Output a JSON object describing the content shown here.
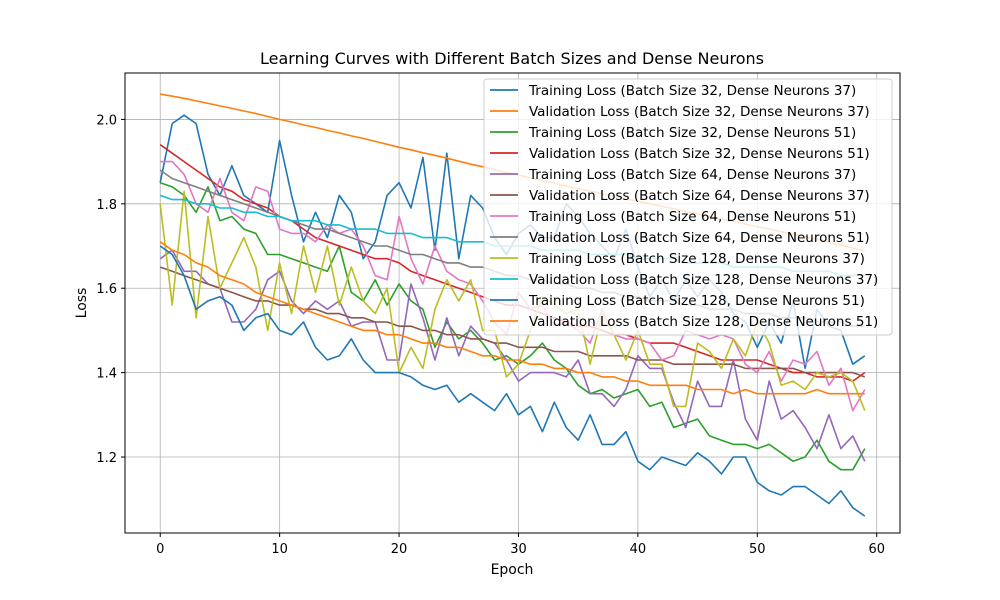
{
  "chart_data": {
    "type": "line",
    "title": "Learning Curves with Different Batch Sizes and Dense Neurons",
    "xlabel": "Epoch",
    "ylabel": "Loss",
    "xlim": [
      -2.95,
      61.95
    ],
    "ylim": [
      1.02,
      2.11
    ],
    "xticks": [
      0,
      10,
      20,
      30,
      40,
      50,
      60
    ],
    "yticks": [
      1.2,
      1.4,
      1.6,
      1.8,
      2.0
    ],
    "xtick_labels": [
      "0",
      "10",
      "20",
      "30",
      "40",
      "50",
      "60"
    ],
    "ytick_labels": [
      "1.2",
      "1.4",
      "1.6",
      "1.8",
      "2.0"
    ],
    "grid": true,
    "legend_position": "top-right",
    "series": [
      {
        "name": "Training Loss (Batch Size 32, Dense Neurons 37)",
        "color": "#1f77b4",
        "values": [
          1.85,
          1.99,
          2.01,
          1.99,
          1.87,
          1.82,
          1.89,
          1.82,
          1.8,
          1.78,
          1.95,
          1.82,
          1.71,
          1.78,
          1.72,
          1.82,
          1.78,
          1.67,
          1.71,
          1.82,
          1.85,
          1.79,
          1.91,
          1.69,
          1.92,
          1.67,
          1.82,
          1.79,
          1.72,
          1.68,
          1.73,
          1.75,
          1.72,
          1.72,
          1.8,
          1.77,
          1.73,
          1.7,
          1.67,
          1.74,
          1.65,
          1.58,
          1.62,
          1.57,
          1.62,
          1.58,
          1.62,
          1.59,
          1.54,
          1.52,
          1.46,
          1.52,
          1.47,
          1.57,
          1.41,
          1.55,
          1.51,
          1.5,
          1.42,
          1.44
        ]
      },
      {
        "name": "Validation Loss (Batch Size 32, Dense Neurons 37)",
        "color": "#ff7f0e",
        "values": [
          2.06,
          2.055,
          2.05,
          2.044,
          2.038,
          2.032,
          2.026,
          2.02,
          2.014,
          2.007,
          2.0,
          1.994,
          1.987,
          1.981,
          1.974,
          1.968,
          1.961,
          1.955,
          1.948,
          1.941,
          1.934,
          1.928,
          1.921,
          1.915,
          1.908,
          1.901,
          1.894,
          1.888,
          1.881,
          1.874,
          1.868,
          1.861,
          1.855,
          1.849,
          1.842,
          1.836,
          1.83,
          1.824,
          1.818,
          1.812,
          1.806,
          1.8,
          1.794,
          1.788,
          1.782,
          1.776,
          1.77,
          1.764,
          1.758,
          1.752,
          1.746,
          1.74,
          1.734,
          1.728,
          1.722,
          1.716,
          1.709,
          1.702,
          1.695,
          1.688
        ]
      },
      {
        "name": "Training Loss (Batch Size 32, Dense Neurons 51)",
        "color": "#2ca02c",
        "values": [
          1.85,
          1.84,
          1.82,
          1.78,
          1.84,
          1.76,
          1.77,
          1.74,
          1.73,
          1.68,
          1.68,
          1.67,
          1.66,
          1.65,
          1.64,
          1.7,
          1.59,
          1.57,
          1.62,
          1.56,
          1.61,
          1.57,
          1.55,
          1.46,
          1.52,
          1.48,
          1.5,
          1.47,
          1.43,
          1.44,
          1.42,
          1.44,
          1.47,
          1.43,
          1.41,
          1.37,
          1.35,
          1.36,
          1.34,
          1.35,
          1.36,
          1.32,
          1.33,
          1.27,
          1.28,
          1.29,
          1.25,
          1.24,
          1.23,
          1.23,
          1.22,
          1.23,
          1.21,
          1.19,
          1.2,
          1.24,
          1.19,
          1.17,
          1.17,
          1.22
        ]
      },
      {
        "name": "Validation Loss (Batch Size 32, Dense Neurons 51)",
        "color": "#d62728",
        "values": [
          1.94,
          1.92,
          1.9,
          1.88,
          1.86,
          1.84,
          1.83,
          1.81,
          1.8,
          1.79,
          1.77,
          1.76,
          1.74,
          1.72,
          1.71,
          1.7,
          1.69,
          1.68,
          1.67,
          1.67,
          1.66,
          1.64,
          1.63,
          1.62,
          1.61,
          1.6,
          1.59,
          1.58,
          1.57,
          1.56,
          1.56,
          1.55,
          1.54,
          1.53,
          1.52,
          1.51,
          1.51,
          1.5,
          1.49,
          1.49,
          1.48,
          1.47,
          1.47,
          1.47,
          1.46,
          1.45,
          1.44,
          1.43,
          1.43,
          1.43,
          1.43,
          1.42,
          1.41,
          1.4,
          1.4,
          1.39,
          1.39,
          1.39,
          1.38,
          1.4
        ]
      },
      {
        "name": "Training Loss (Batch Size 64, Dense Neurons 37)",
        "color": "#9467bd",
        "values": [
          1.67,
          1.69,
          1.64,
          1.64,
          1.61,
          1.6,
          1.52,
          1.52,
          1.55,
          1.62,
          1.64,
          1.57,
          1.54,
          1.57,
          1.55,
          1.57,
          1.51,
          1.52,
          1.52,
          1.43,
          1.43,
          1.61,
          1.53,
          1.43,
          1.53,
          1.44,
          1.51,
          1.48,
          1.47,
          1.43,
          1.38,
          1.4,
          1.4,
          1.4,
          1.39,
          1.43,
          1.35,
          1.35,
          1.32,
          1.36,
          1.44,
          1.41,
          1.41,
          1.33,
          1.27,
          1.38,
          1.32,
          1.32,
          1.43,
          1.29,
          1.24,
          1.38,
          1.29,
          1.31,
          1.27,
          1.22,
          1.3,
          1.22,
          1.25,
          1.19
        ]
      },
      {
        "name": "Validation Loss (Batch Size 64, Dense Neurons 37)",
        "color": "#8c564b",
        "values": [
          1.65,
          1.64,
          1.63,
          1.62,
          1.61,
          1.6,
          1.59,
          1.58,
          1.57,
          1.57,
          1.56,
          1.56,
          1.55,
          1.55,
          1.54,
          1.54,
          1.53,
          1.53,
          1.52,
          1.52,
          1.51,
          1.51,
          1.5,
          1.5,
          1.49,
          1.49,
          1.48,
          1.48,
          1.47,
          1.47,
          1.46,
          1.46,
          1.46,
          1.45,
          1.45,
          1.45,
          1.44,
          1.44,
          1.44,
          1.44,
          1.43,
          1.43,
          1.43,
          1.42,
          1.42,
          1.42,
          1.42,
          1.42,
          1.42,
          1.41,
          1.41,
          1.41,
          1.41,
          1.41,
          1.4,
          1.4,
          1.4,
          1.4,
          1.4,
          1.39
        ]
      },
      {
        "name": "Training Loss (Batch Size 64, Dense Neurons 51)",
        "color": "#e377c2",
        "values": [
          1.9,
          1.9,
          1.87,
          1.8,
          1.78,
          1.86,
          1.78,
          1.76,
          1.84,
          1.83,
          1.74,
          1.73,
          1.73,
          1.71,
          1.75,
          1.73,
          1.74,
          1.7,
          1.63,
          1.62,
          1.77,
          1.67,
          1.61,
          1.7,
          1.64,
          1.62,
          1.61,
          1.57,
          1.52,
          1.49,
          1.59,
          1.55,
          1.56,
          1.51,
          1.52,
          1.5,
          1.47,
          1.55,
          1.49,
          1.48,
          1.48,
          1.47,
          1.43,
          1.44,
          1.5,
          1.49,
          1.48,
          1.49,
          1.48,
          1.42,
          1.4,
          1.45,
          1.38,
          1.43,
          1.42,
          1.45,
          1.37,
          1.41,
          1.31,
          1.36
        ]
      },
      {
        "name": "Validation Loss (Batch Size 64, Dense Neurons 51)",
        "color": "#7f7f7f",
        "values": [
          1.88,
          1.86,
          1.85,
          1.84,
          1.83,
          1.82,
          1.81,
          1.8,
          1.79,
          1.78,
          1.77,
          1.76,
          1.75,
          1.74,
          1.74,
          1.73,
          1.72,
          1.71,
          1.7,
          1.7,
          1.69,
          1.68,
          1.68,
          1.67,
          1.66,
          1.66,
          1.65,
          1.65,
          1.64,
          1.63,
          1.63,
          1.62,
          1.62,
          1.61,
          1.61,
          1.6,
          1.6,
          1.59,
          1.59,
          1.58,
          1.58,
          1.57,
          1.57,
          1.57,
          1.56,
          1.56,
          1.55,
          1.55,
          1.55,
          1.54,
          1.54,
          1.54,
          1.53,
          1.53,
          1.53,
          1.52,
          1.52,
          1.52,
          1.51,
          1.51
        ]
      },
      {
        "name": "Training Loss (Batch Size 128, Dense Neurons 37)",
        "color": "#bcbd22",
        "values": [
          1.8,
          1.56,
          1.83,
          1.53,
          1.77,
          1.6,
          1.66,
          1.72,
          1.65,
          1.5,
          1.66,
          1.54,
          1.7,
          1.59,
          1.7,
          1.56,
          1.65,
          1.57,
          1.54,
          1.6,
          1.4,
          1.46,
          1.41,
          1.55,
          1.62,
          1.57,
          1.62,
          1.5,
          1.5,
          1.39,
          1.42,
          1.5,
          1.58,
          1.56,
          1.54,
          1.55,
          1.42,
          1.54,
          1.49,
          1.43,
          1.5,
          1.42,
          1.42,
          1.32,
          1.32,
          1.47,
          1.45,
          1.41,
          1.48,
          1.44,
          1.52,
          1.47,
          1.37,
          1.38,
          1.36,
          1.4,
          1.39,
          1.4,
          1.38,
          1.31
        ]
      },
      {
        "name": "Validation Loss (Batch Size 128, Dense Neurons 37)",
        "color": "#17becf",
        "values": [
          1.82,
          1.81,
          1.81,
          1.8,
          1.8,
          1.79,
          1.79,
          1.78,
          1.78,
          1.77,
          1.77,
          1.76,
          1.76,
          1.76,
          1.75,
          1.75,
          1.74,
          1.74,
          1.74,
          1.73,
          1.73,
          1.73,
          1.72,
          1.72,
          1.72,
          1.71,
          1.71,
          1.71,
          1.7,
          1.7,
          1.7,
          1.7,
          1.69,
          1.69,
          1.69,
          1.69,
          1.68,
          1.68,
          1.68,
          1.68,
          1.67,
          1.67,
          1.67,
          1.67,
          1.66,
          1.66,
          1.66,
          1.66,
          1.65,
          1.65,
          1.65,
          1.65,
          1.65,
          1.64,
          1.64,
          1.64,
          1.64,
          1.63,
          1.63,
          1.63
        ]
      },
      {
        "name": "Training Loss (Batch Size 128, Dense Neurons 51)",
        "color": "#1f77b4",
        "values": [
          1.7,
          1.68,
          1.63,
          1.55,
          1.57,
          1.58,
          1.56,
          1.5,
          1.53,
          1.54,
          1.5,
          1.49,
          1.52,
          1.46,
          1.43,
          1.44,
          1.48,
          1.43,
          1.4,
          1.4,
          1.4,
          1.39,
          1.37,
          1.36,
          1.37,
          1.33,
          1.35,
          1.33,
          1.31,
          1.35,
          1.3,
          1.32,
          1.26,
          1.33,
          1.27,
          1.24,
          1.3,
          1.23,
          1.23,
          1.26,
          1.19,
          1.17,
          1.2,
          1.19,
          1.18,
          1.21,
          1.19,
          1.16,
          1.2,
          1.2,
          1.14,
          1.12,
          1.11,
          1.13,
          1.13,
          1.11,
          1.09,
          1.12,
          1.08,
          1.06
        ]
      },
      {
        "name": "Validation Loss (Batch Size 128, Dense Neurons 51)",
        "color": "#ff7f0e",
        "values": [
          1.71,
          1.69,
          1.68,
          1.66,
          1.65,
          1.63,
          1.62,
          1.61,
          1.59,
          1.58,
          1.57,
          1.56,
          1.55,
          1.54,
          1.53,
          1.52,
          1.51,
          1.5,
          1.5,
          1.49,
          1.49,
          1.48,
          1.47,
          1.47,
          1.46,
          1.46,
          1.45,
          1.44,
          1.44,
          1.43,
          1.43,
          1.42,
          1.42,
          1.41,
          1.41,
          1.4,
          1.4,
          1.39,
          1.39,
          1.38,
          1.38,
          1.37,
          1.37,
          1.37,
          1.37,
          1.36,
          1.36,
          1.36,
          1.35,
          1.36,
          1.35,
          1.35,
          1.35,
          1.35,
          1.35,
          1.36,
          1.35,
          1.35,
          1.35,
          1.35
        ]
      }
    ]
  }
}
